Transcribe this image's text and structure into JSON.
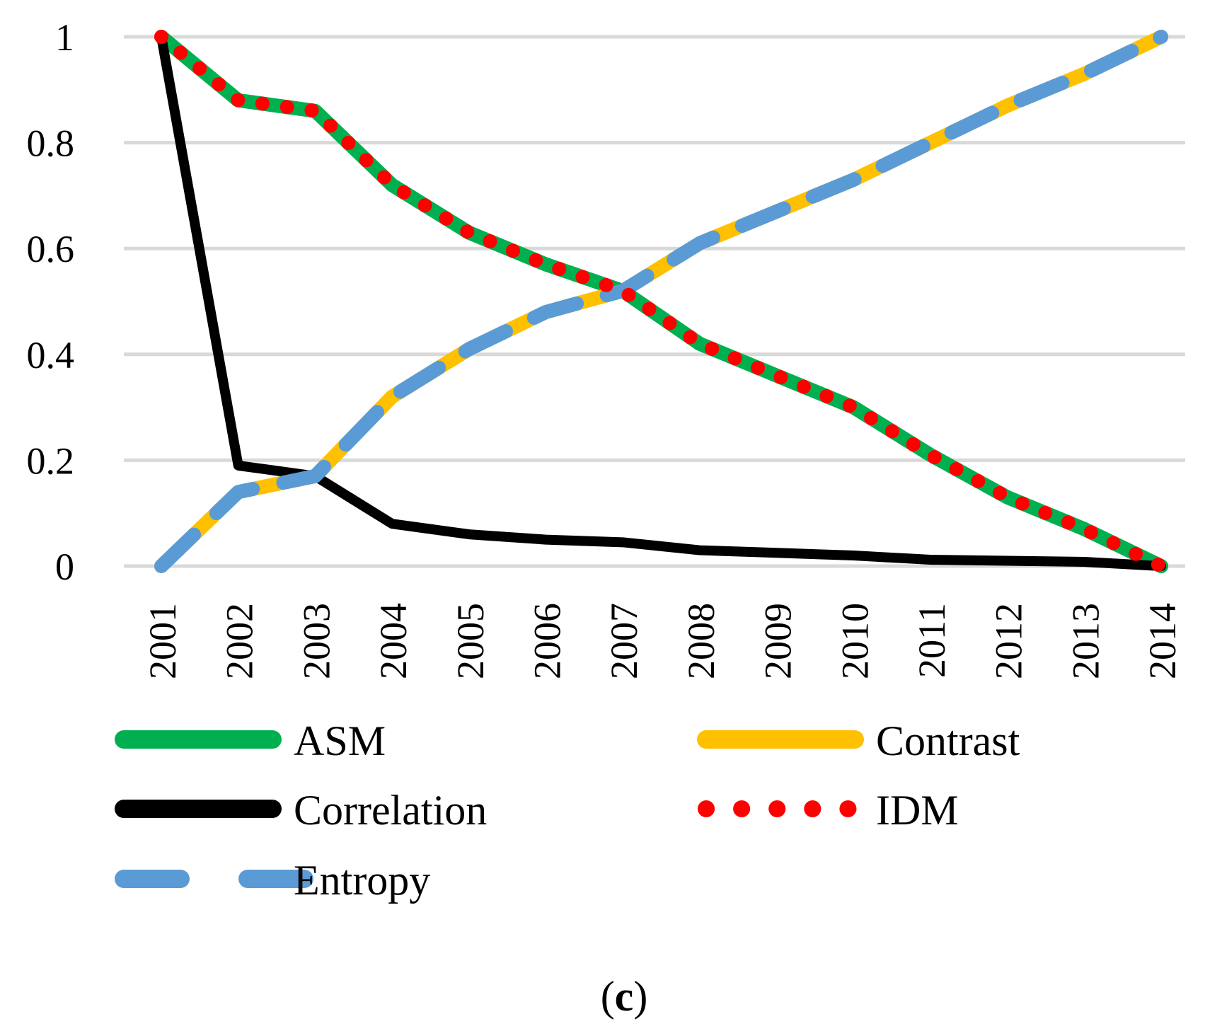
{
  "caption": {
    "open": "(",
    "letter": "c",
    "close": ")"
  },
  "chart_data": {
    "type": "line",
    "categories": [
      "2001",
      "2002",
      "2003",
      "2004",
      "2005",
      "2006",
      "2007",
      "2008",
      "2009",
      "2010",
      "2011",
      "2012",
      "2013",
      "2014"
    ],
    "ylim": [
      0,
      1
    ],
    "yticks": [
      "0",
      "0.2",
      "0.4",
      "0.6",
      "0.8",
      "1"
    ],
    "grid": true,
    "legend_position": "bottom",
    "series": [
      {
        "name": "ASM",
        "color": "#00B050",
        "style": "solid",
        "values": [
          1.0,
          0.88,
          0.86,
          0.72,
          0.63,
          0.57,
          0.52,
          0.42,
          0.36,
          0.3,
          0.21,
          0.13,
          0.07,
          0.0
        ]
      },
      {
        "name": "Contrast",
        "color": "#FFC000",
        "style": "solid",
        "values": [
          0.0,
          0.14,
          0.17,
          0.32,
          0.41,
          0.48,
          0.52,
          0.61,
          0.67,
          0.73,
          0.8,
          0.87,
          0.93,
          1.0
        ]
      },
      {
        "name": "Correlation",
        "color": "#000000",
        "style": "solid",
        "values": [
          1.0,
          0.19,
          0.17,
          0.08,
          0.06,
          0.05,
          0.045,
          0.03,
          0.025,
          0.02,
          0.012,
          0.01,
          0.008,
          0.0
        ]
      },
      {
        "name": "IDM",
        "color": "#FF0000",
        "style": "dotted",
        "values": [
          1.0,
          0.88,
          0.86,
          0.72,
          0.63,
          0.57,
          0.52,
          0.42,
          0.36,
          0.3,
          0.21,
          0.13,
          0.07,
          0.0
        ]
      },
      {
        "name": "Entropy",
        "color": "#5B9BD5",
        "style": "dashed",
        "values": [
          0.0,
          0.14,
          0.17,
          0.32,
          0.41,
          0.48,
          0.52,
          0.61,
          0.67,
          0.73,
          0.8,
          0.87,
          0.93,
          1.0
        ]
      }
    ]
  }
}
